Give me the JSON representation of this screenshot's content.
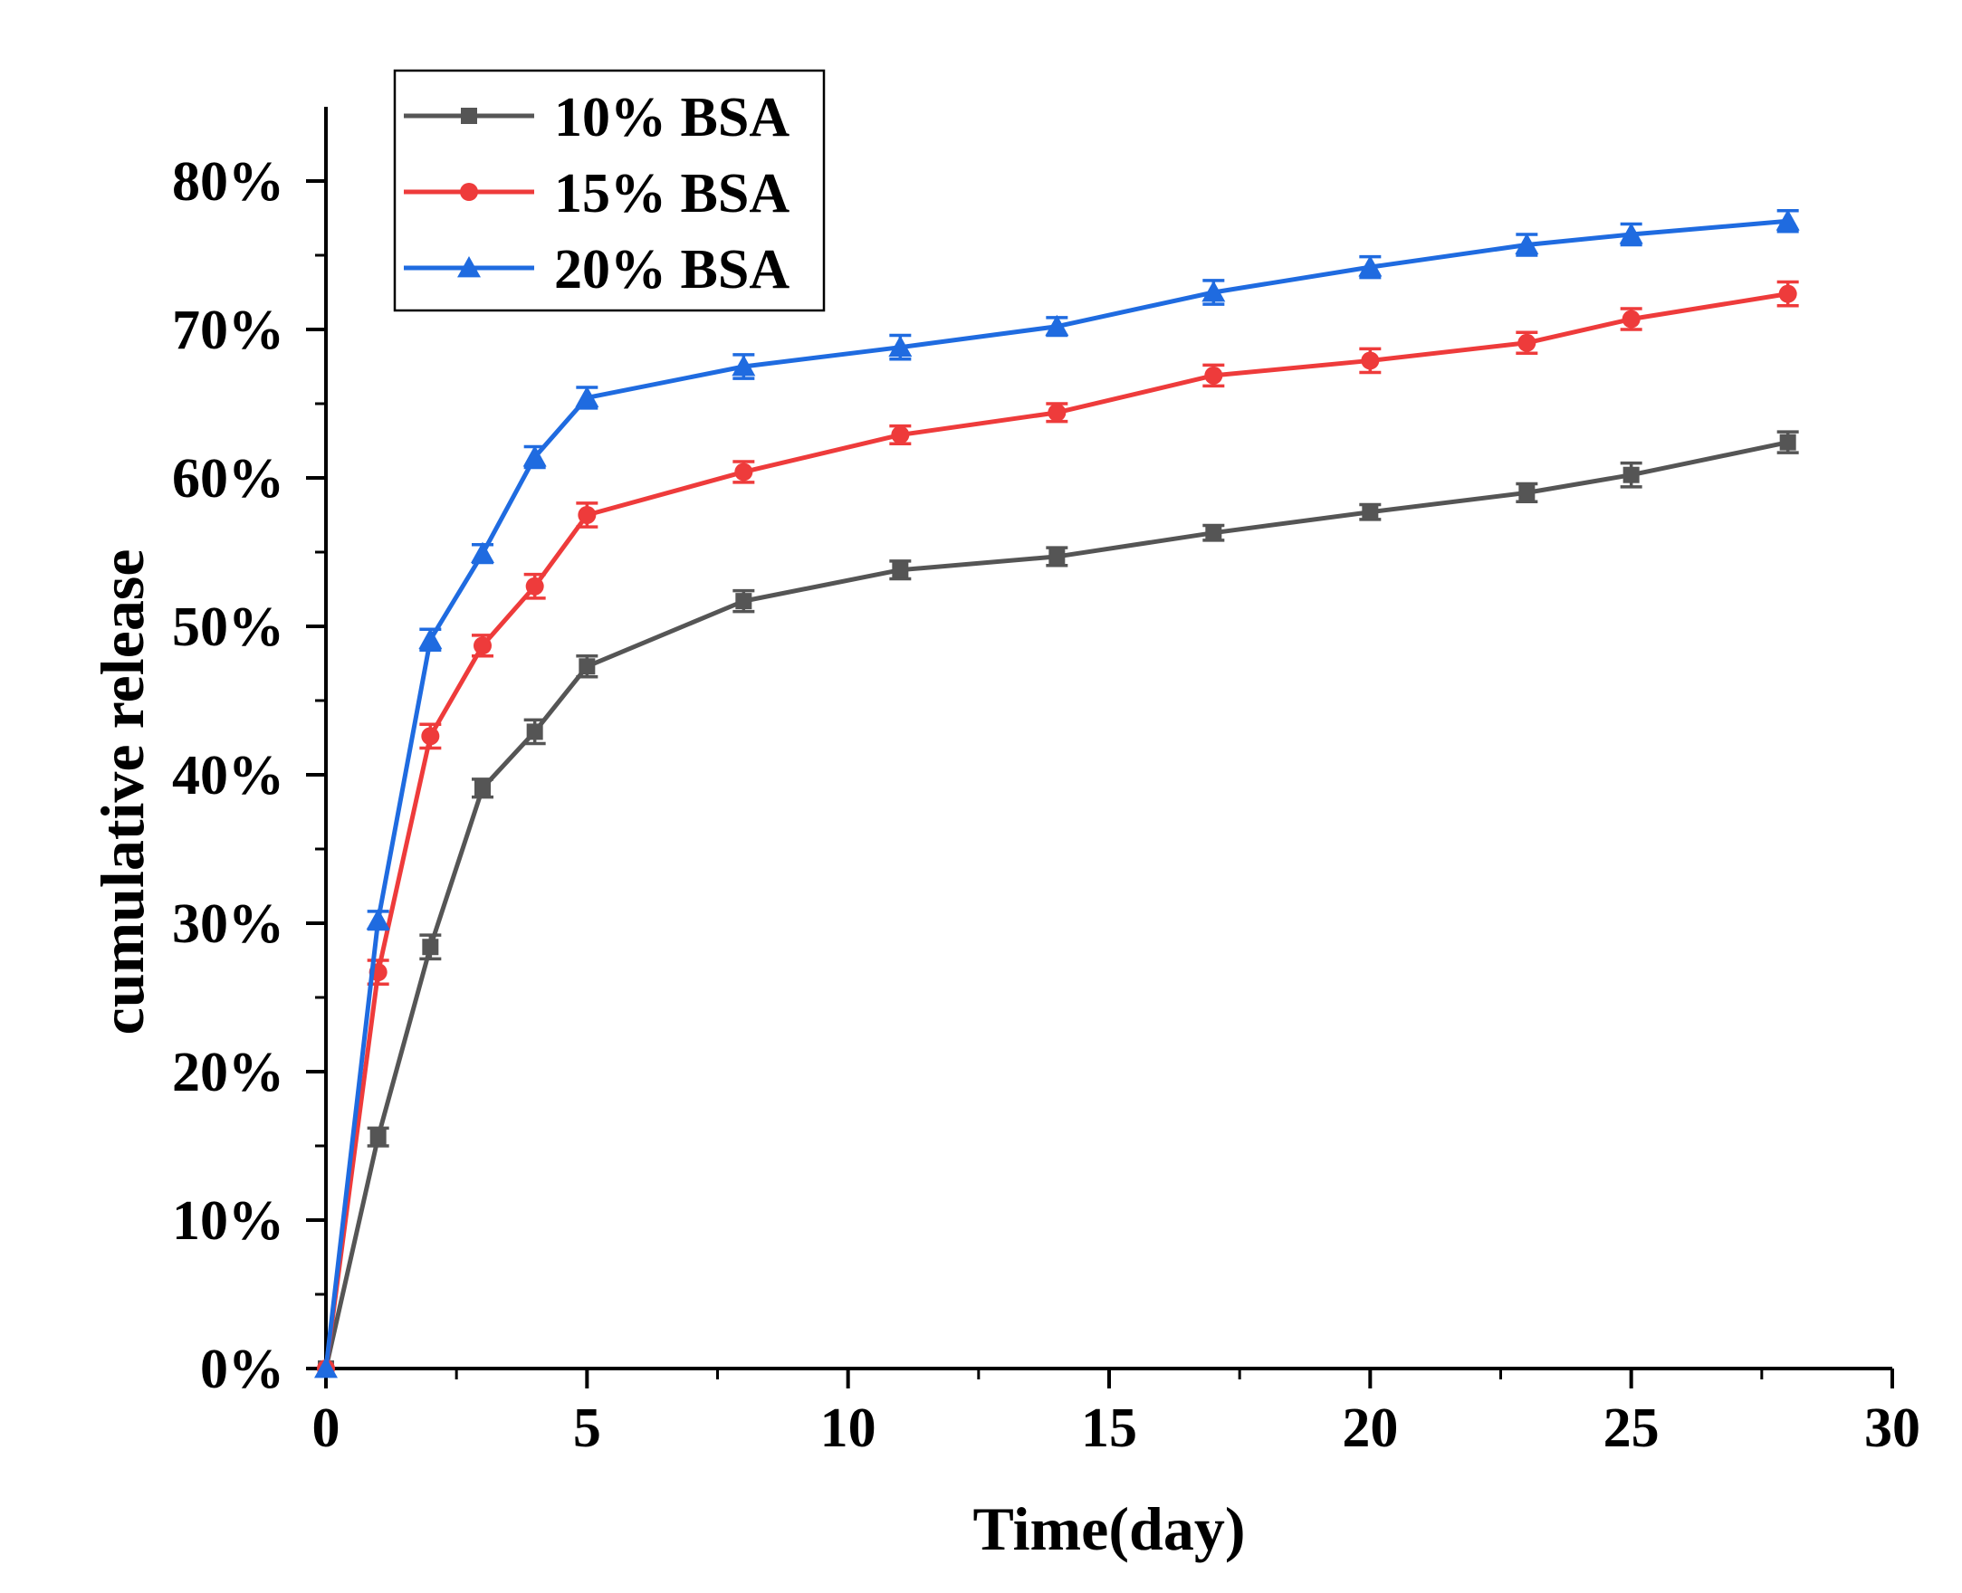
{
  "chart_data": {
    "type": "line",
    "title": "",
    "xlabel": "Time(day)",
    "ylabel": "cumulative release",
    "xlim": [
      0,
      30
    ],
    "ylim": [
      0,
      0.85
    ],
    "x_ticks": [
      0,
      5,
      10,
      15,
      20,
      25,
      30
    ],
    "x_tick_labels": [
      "0",
      "5",
      "10",
      "15",
      "20",
      "25",
      "30"
    ],
    "y_ticks": [
      0,
      0.1,
      0.2,
      0.3,
      0.4,
      0.5,
      0.6,
      0.7,
      0.8
    ],
    "y_tick_labels": [
      "0%",
      "10%",
      "20%",
      "30%",
      "40%",
      "50%",
      "60%",
      "70%",
      "80%"
    ],
    "grid": false,
    "legend_position": "top-left",
    "x": [
      0,
      1,
      2,
      3,
      4,
      5,
      8,
      11,
      14,
      17,
      20,
      23,
      25,
      28
    ],
    "series": [
      {
        "name": "10% BSA",
        "color": "#555555",
        "marker": "square",
        "values": [
          0.0,
          0.156,
          0.284,
          0.391,
          0.429,
          0.473,
          0.517,
          0.538,
          0.547,
          0.563,
          0.577,
          0.59,
          0.602,
          0.624
        ],
        "errors": [
          0.0,
          0.006,
          0.008,
          0.006,
          0.008,
          0.007,
          0.007,
          0.006,
          0.006,
          0.005,
          0.005,
          0.006,
          0.008,
          0.007
        ]
      },
      {
        "name": "15% BSA",
        "color": "#ee3b3b",
        "marker": "circle",
        "values": [
          0.0,
          0.267,
          0.426,
          0.487,
          0.527,
          0.575,
          0.604,
          0.629,
          0.644,
          0.669,
          0.679,
          0.691,
          0.707,
          0.724
        ],
        "errors": [
          0.0,
          0.008,
          0.008,
          0.007,
          0.008,
          0.008,
          0.007,
          0.006,
          0.006,
          0.007,
          0.008,
          0.007,
          0.007,
          0.008
        ]
      },
      {
        "name": "20% BSA",
        "color": "#1f6be0",
        "marker": "triangle",
        "values": [
          0.0,
          0.302,
          0.491,
          0.549,
          0.614,
          0.654,
          0.675,
          0.688,
          0.702,
          0.725,
          0.742,
          0.757,
          0.764,
          0.773
        ],
        "errors": [
          0.0,
          0.006,
          0.007,
          0.006,
          0.007,
          0.007,
          0.008,
          0.008,
          0.006,
          0.008,
          0.007,
          0.007,
          0.007,
          0.007
        ]
      }
    ]
  }
}
